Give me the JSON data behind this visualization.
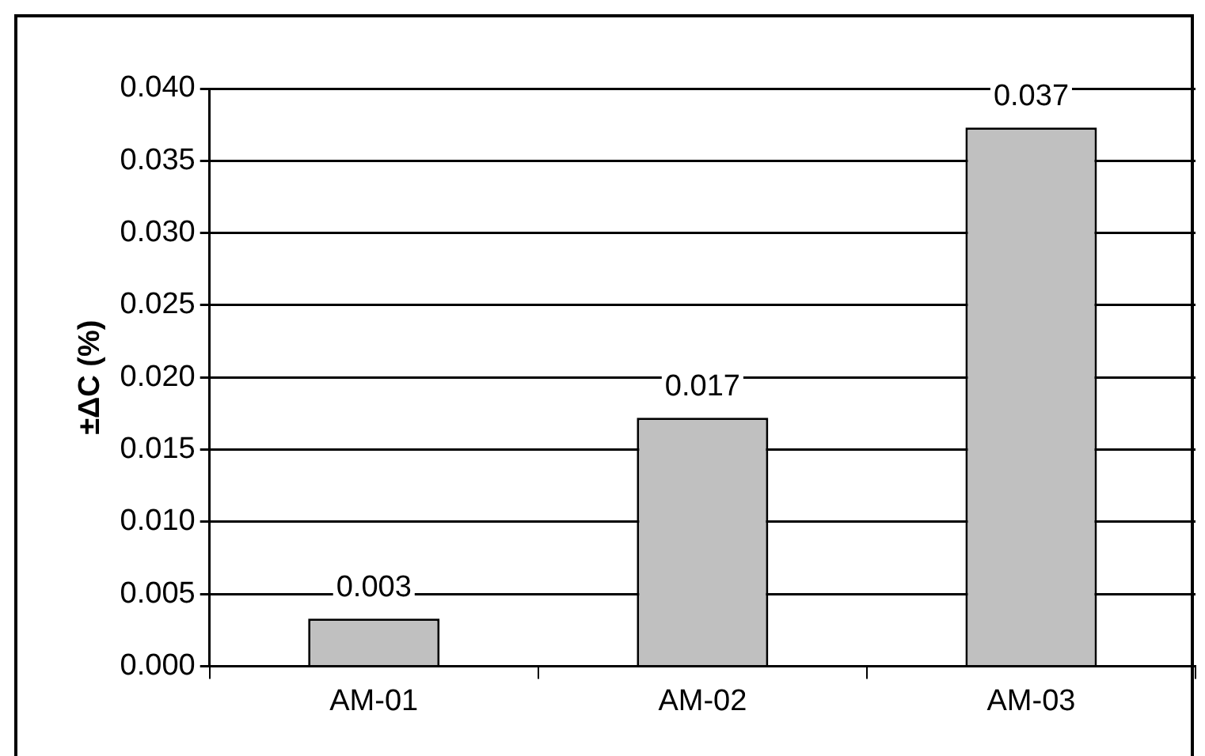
{
  "chart_data": {
    "type": "bar",
    "ylabel": "±ΔC (%)",
    "categories": [
      "AM-01",
      "AM-02",
      "AM-03"
    ],
    "values": [
      0.0033,
      0.0172,
      0.0373
    ],
    "value_labels": [
      "0.003",
      "0.017",
      "0.037"
    ],
    "color": "#c0c0c0",
    "ylim": [
      0,
      0.04
    ],
    "yticks": [
      {
        "value": 0,
        "label": "0.000"
      },
      {
        "value": 0.005,
        "label": "0.005"
      },
      {
        "value": 0.01,
        "label": "0.010"
      },
      {
        "value": 0.015,
        "label": "0.015"
      },
      {
        "value": 0.02,
        "label": "0.020"
      },
      {
        "value": 0.025,
        "label": "0.025"
      },
      {
        "value": 0.03,
        "label": "0.030"
      },
      {
        "value": 0.035,
        "label": "0.035"
      },
      {
        "value": 0.04,
        "label": "0.040"
      }
    ],
    "grid": "y",
    "legend": false
  }
}
